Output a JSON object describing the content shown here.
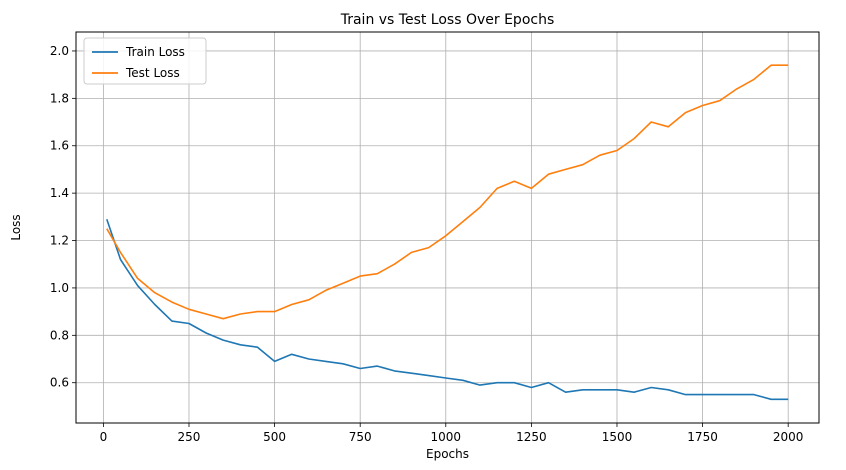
{
  "chart_data": {
    "type": "line",
    "title": "Train vs Test Loss Over Epochs",
    "xlabel": "Epochs",
    "ylabel": "Loss",
    "xlim": [
      -80,
      2090
    ],
    "ylim": [
      0.43,
      2.08
    ],
    "xticks": [
      0,
      250,
      500,
      750,
      1000,
      1250,
      1500,
      1750,
      2000
    ],
    "yticks": [
      0.6,
      0.8,
      1.0,
      1.2,
      1.4,
      1.6,
      1.8,
      2.0
    ],
    "xtick_labels": [
      "0",
      "250",
      "500",
      "750",
      "1000",
      "1250",
      "1500",
      "1750",
      "2000"
    ],
    "ytick_labels": [
      "0.6",
      "0.8",
      "1.0",
      "1.2",
      "1.4",
      "1.6",
      "1.8",
      "2.0"
    ],
    "grid": true,
    "legend": "upper-left",
    "series": [
      {
        "name": "Train Loss",
        "color": "#1f77b4",
        "x": [
          10,
          50,
          100,
          150,
          200,
          250,
          300,
          350,
          400,
          450,
          500,
          550,
          600,
          650,
          700,
          750,
          800,
          850,
          900,
          950,
          1000,
          1050,
          1100,
          1150,
          1200,
          1250,
          1300,
          1350,
          1400,
          1450,
          1500,
          1550,
          1600,
          1650,
          1700,
          1750,
          1800,
          1850,
          1900,
          1950,
          2000
        ],
        "y": [
          1.29,
          1.12,
          1.01,
          0.93,
          0.86,
          0.85,
          0.81,
          0.78,
          0.76,
          0.75,
          0.69,
          0.72,
          0.7,
          0.69,
          0.68,
          0.66,
          0.67,
          0.65,
          0.64,
          0.63,
          0.62,
          0.61,
          0.59,
          0.6,
          0.6,
          0.58,
          0.6,
          0.56,
          0.57,
          0.57,
          0.57,
          0.56,
          0.58,
          0.57,
          0.55,
          0.55,
          0.55,
          0.55,
          0.55,
          0.53,
          0.53
        ]
      },
      {
        "name": "Test Loss",
        "color": "#ff7f0e",
        "x": [
          10,
          50,
          100,
          150,
          200,
          250,
          300,
          350,
          400,
          450,
          500,
          550,
          600,
          650,
          700,
          750,
          800,
          850,
          900,
          950,
          1000,
          1050,
          1100,
          1150,
          1200,
          1250,
          1300,
          1350,
          1400,
          1450,
          1500,
          1550,
          1600,
          1650,
          1700,
          1750,
          1800,
          1850,
          1900,
          1950,
          2000
        ],
        "y": [
          1.25,
          1.15,
          1.04,
          0.98,
          0.94,
          0.91,
          0.89,
          0.87,
          0.89,
          0.9,
          0.9,
          0.93,
          0.95,
          0.99,
          1.02,
          1.05,
          1.06,
          1.1,
          1.15,
          1.17,
          1.22,
          1.28,
          1.34,
          1.42,
          1.45,
          1.42,
          1.48,
          1.5,
          1.52,
          1.56,
          1.58,
          1.63,
          1.7,
          1.68,
          1.74,
          1.77,
          1.79,
          1.84,
          1.88,
          1.94,
          1.94
        ]
      }
    ]
  }
}
